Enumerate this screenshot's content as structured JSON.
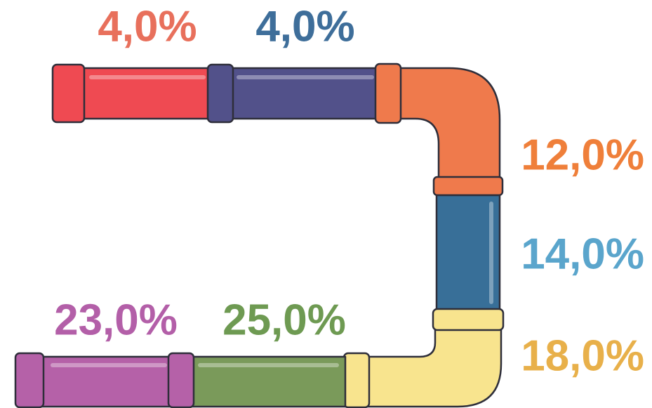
{
  "segments": [
    {
      "label": "4,0%"
    },
    {
      "label": "4,0%"
    },
    {
      "label": "12,0%"
    },
    {
      "label": "14,0%"
    },
    {
      "label": "18,0%"
    },
    {
      "label": "25,0%"
    },
    {
      "label": "23,0%"
    }
  ]
}
